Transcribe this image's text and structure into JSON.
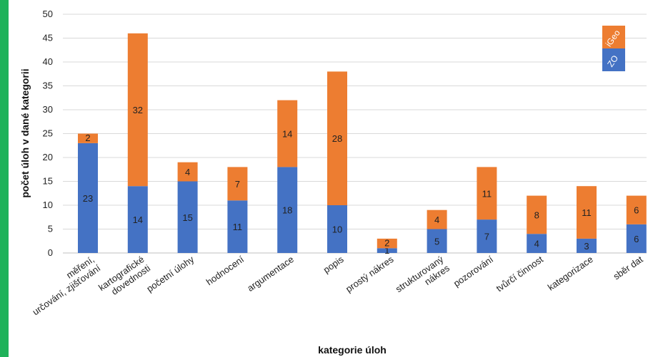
{
  "chart_data": {
    "type": "bar",
    "stacked": true,
    "title": "",
    "xlabel": "kategorie úloh",
    "ylabel": "počet úloh v dané kategorii",
    "ylim": [
      0,
      50
    ],
    "yticks": [
      0,
      5,
      10,
      15,
      20,
      25,
      30,
      35,
      40,
      45,
      50
    ],
    "grid": true,
    "legend_position": "top-right",
    "categories": [
      "měření, určování, zjišťování",
      "kartografické dovednosti",
      "početní úlohy",
      "hodnocení",
      "argumentace",
      "popis",
      "prostý nákres",
      "strukturovaný nákres",
      "pozorování",
      "tvůrčí činnost",
      "kategorizace",
      "sběr dat"
    ],
    "category_lines": [
      [
        "měření,",
        "určování, zjišťování"
      ],
      [
        "kartografické",
        "dovednosti"
      ],
      [
        "početní úlohy"
      ],
      [
        "hodnocení"
      ],
      [
        "argumentace"
      ],
      [
        "popis"
      ],
      [
        "prostý nákres"
      ],
      [
        "strukturovaný",
        "nákres"
      ],
      [
        "pozorování"
      ],
      [
        "tvůrčí činnost"
      ],
      [
        "kategorizace"
      ],
      [
        "sběr dat"
      ]
    ],
    "series": [
      {
        "name": "ZO",
        "color": "#4472c4",
        "values": [
          23,
          14,
          15,
          11,
          18,
          10,
          1,
          5,
          7,
          4,
          3,
          6
        ]
      },
      {
        "name": "iGeo",
        "color": "#ed7d31",
        "values": [
          2,
          32,
          4,
          7,
          14,
          28,
          2,
          4,
          11,
          8,
          11,
          6
        ]
      }
    ]
  }
}
